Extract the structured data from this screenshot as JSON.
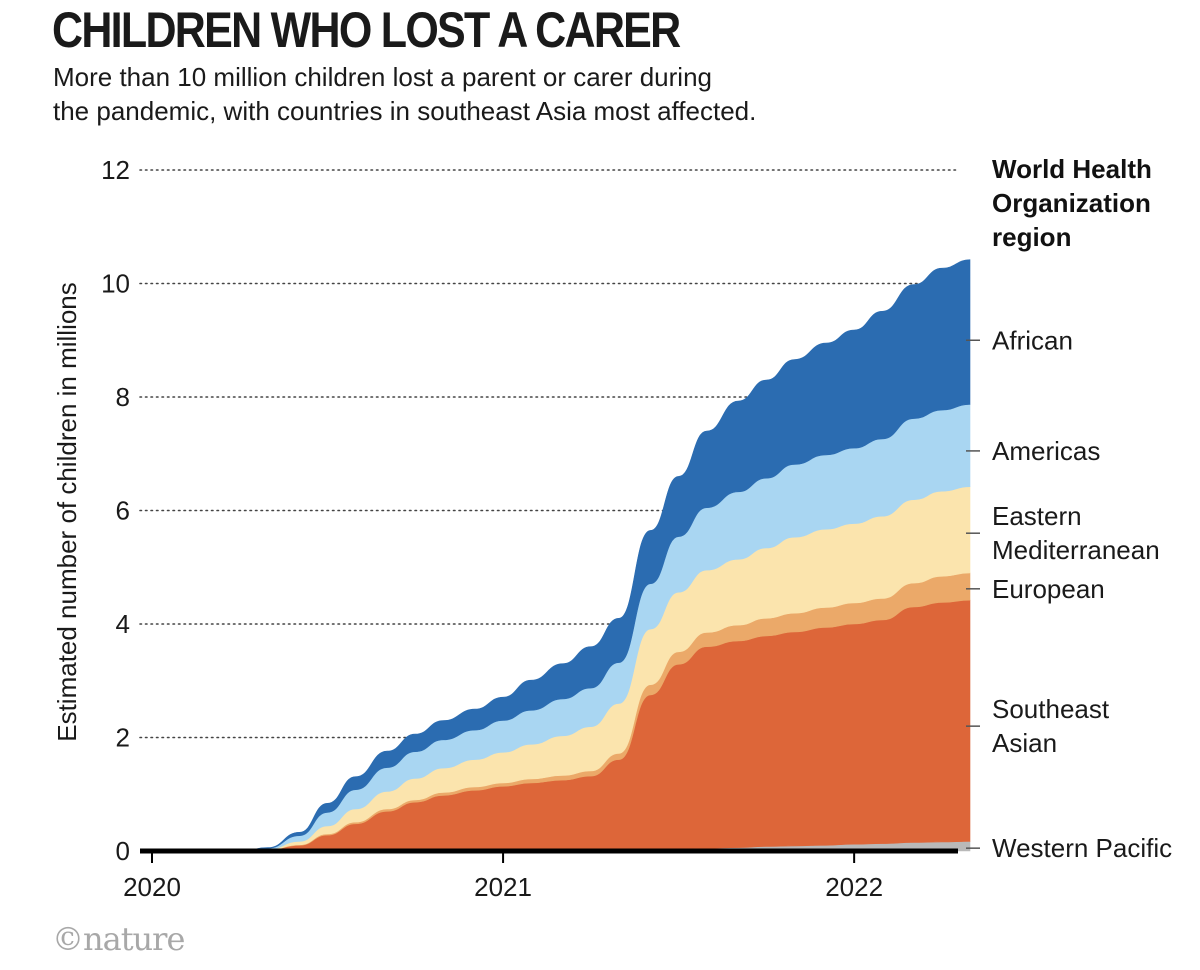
{
  "header": {
    "title": "CHILDREN WHO LOST A CARER",
    "subtitle_line1": "More than 10 million children lost a parent or carer during",
    "subtitle_line2": "the pandemic, with countries in southeast Asia most affected."
  },
  "legend": {
    "title_lines": [
      "World Health",
      "Organization",
      "region"
    ]
  },
  "credit": "©nature",
  "chart_data": {
    "type": "area",
    "stacked": true,
    "title": "CHILDREN WHO LOST A CARER",
    "xlabel": "",
    "ylabel": "Estimated number of children in millions",
    "xlim": [
      2020.0,
      2022.33
    ],
    "ylim": [
      0,
      12
    ],
    "yticks": [
      0,
      2,
      4,
      6,
      8,
      10,
      12
    ],
    "xticks": [
      2020,
      2021,
      2022
    ],
    "grid": "dotted horizontal",
    "legend_position": "right",
    "x": [
      2020.0,
      2020.25,
      2020.33,
      2020.42,
      2020.5,
      2020.58,
      2020.67,
      2020.75,
      2020.83,
      2020.92,
      2021.0,
      2021.08,
      2021.17,
      2021.25,
      2021.33,
      2021.42,
      2021.5,
      2021.58,
      2021.67,
      2021.75,
      2021.83,
      2021.92,
      2022.0,
      2022.08,
      2022.17,
      2022.25,
      2022.33
    ],
    "series": [
      {
        "name": "Western Pacific",
        "color": "#b9b9b9",
        "values": [
          0.0,
          0.0,
          0.0,
          0.0,
          0.0,
          0.0,
          0.0,
          0.01,
          0.01,
          0.01,
          0.01,
          0.02,
          0.02,
          0.02,
          0.03,
          0.03,
          0.04,
          0.05,
          0.06,
          0.08,
          0.09,
          0.1,
          0.12,
          0.13,
          0.15,
          0.16,
          0.17
        ]
      },
      {
        "name": "Southeast Asian",
        "color": "#dd6639",
        "values": [
          0.0,
          0.0,
          0.02,
          0.1,
          0.28,
          0.48,
          0.7,
          0.85,
          0.97,
          1.06,
          1.13,
          1.18,
          1.23,
          1.3,
          1.58,
          2.72,
          3.25,
          3.55,
          3.64,
          3.71,
          3.77,
          3.84,
          3.88,
          3.94,
          4.15,
          4.22,
          4.25
        ]
      },
      {
        "name": "European",
        "color": "#eba969",
        "values": [
          0.0,
          0.0,
          0.0,
          0.01,
          0.02,
          0.03,
          0.04,
          0.04,
          0.05,
          0.06,
          0.06,
          0.07,
          0.08,
          0.09,
          0.11,
          0.18,
          0.22,
          0.25,
          0.28,
          0.31,
          0.33,
          0.35,
          0.37,
          0.38,
          0.42,
          0.46,
          0.48
        ]
      },
      {
        "name": "Eastern Mediterranean",
        "color": "#fbe4ad",
        "values": [
          0.0,
          0.0,
          0.01,
          0.06,
          0.14,
          0.23,
          0.31,
          0.38,
          0.43,
          0.48,
          0.54,
          0.61,
          0.7,
          0.78,
          0.88,
          0.98,
          1.05,
          1.1,
          1.16,
          1.24,
          1.34,
          1.38,
          1.4,
          1.45,
          1.47,
          1.5,
          1.52
        ]
      },
      {
        "name": "Americas",
        "color": "#a9d6f2",
        "values": [
          0.0,
          0.0,
          0.02,
          0.1,
          0.24,
          0.34,
          0.42,
          0.47,
          0.5,
          0.52,
          0.56,
          0.6,
          0.65,
          0.68,
          0.72,
          0.8,
          0.98,
          1.1,
          1.19,
          1.23,
          1.28,
          1.31,
          1.33,
          1.36,
          1.43,
          1.43,
          1.45
        ]
      },
      {
        "name": "African",
        "color": "#2b6cb1",
        "values": [
          0.0,
          0.0,
          0.01,
          0.06,
          0.16,
          0.23,
          0.29,
          0.31,
          0.34,
          0.37,
          0.41,
          0.53,
          0.62,
          0.73,
          0.78,
          0.94,
          1.06,
          1.35,
          1.6,
          1.73,
          1.85,
          1.97,
          2.08,
          2.25,
          2.36,
          2.5,
          2.55
        ]
      }
    ],
    "labels": [
      {
        "lines": [
          "African"
        ],
        "y": 9.0
      },
      {
        "lines": [
          "Americas"
        ],
        "y": 7.05
      },
      {
        "lines": [
          "Eastern",
          "Mediterranean"
        ],
        "y": 5.6
      },
      {
        "lines": [
          "European"
        ],
        "y": 4.62
      },
      {
        "lines": [
          "Southeast",
          "Asian"
        ],
        "y": 2.2
      },
      {
        "lines": [
          "Western Pacific"
        ],
        "y": 0.05
      }
    ]
  }
}
